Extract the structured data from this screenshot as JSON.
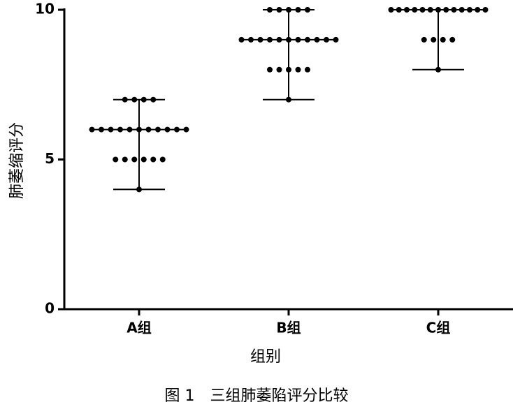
{
  "chart_data": {
    "type": "dot",
    "y_label": "肺萎缩评分",
    "x_label": "组别",
    "caption": "图 1　三组肺萎陷评分比较",
    "categories": [
      "A组",
      "B组",
      "C组"
    ],
    "groups": [
      {
        "values": [
          7,
          7,
          7,
          7,
          6,
          6,
          6,
          6,
          6,
          6,
          6,
          6,
          6,
          6,
          6,
          5,
          5,
          5,
          5,
          5,
          5,
          4
        ],
        "median": 6,
        "min": 4,
        "max": 7
      },
      {
        "values": [
          10,
          10,
          10,
          10,
          10,
          9,
          9,
          9,
          9,
          9,
          9,
          9,
          9,
          9,
          9,
          9,
          8,
          8,
          8,
          8,
          8,
          7
        ],
        "median": 9,
        "min": 7,
        "max": 10
      },
      {
        "values": [
          10,
          10,
          10,
          10,
          10,
          10,
          10,
          10,
          10,
          10,
          10,
          10,
          10,
          9,
          9,
          9,
          9,
          8
        ],
        "median": 10,
        "min": 8,
        "max": 10
      }
    ],
    "color": "#000000",
    "ylim": [
      0,
      10
    ],
    "yticks": [
      0,
      5,
      10
    ]
  }
}
